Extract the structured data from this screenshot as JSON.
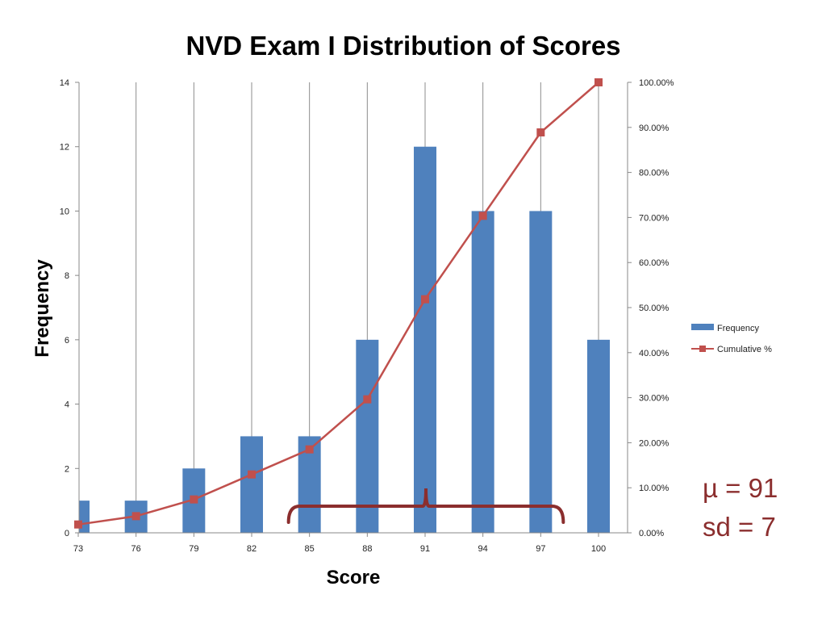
{
  "chart_data": {
    "type": "bar",
    "title": "NVD Exam I Distribution of Scores",
    "xlabel": "Score",
    "ylabel": "Frequency",
    "categories": [
      "73",
      "76",
      "79",
      "82",
      "85",
      "88",
      "91",
      "94",
      "97",
      "100"
    ],
    "series": [
      {
        "name": "Frequency",
        "type": "bar",
        "axis": "left",
        "color": "#4f81bd",
        "values": [
          1,
          1,
          2,
          3,
          3,
          6,
          12,
          10,
          10,
          6
        ]
      },
      {
        "name": "Cumulative %",
        "type": "line",
        "axis": "right",
        "color": "#c0504d",
        "marker": "square",
        "values": [
          1.85,
          3.7,
          7.41,
          12.96,
          18.52,
          29.63,
          51.85,
          70.37,
          88.89,
          100.0
        ]
      }
    ],
    "ylim": [
      0,
      14
    ],
    "y_ticks": [
      "0",
      "2",
      "4",
      "6",
      "8",
      "10",
      "12",
      "14"
    ],
    "y2lim": [
      0,
      100
    ],
    "y2_ticks": [
      "0.00%",
      "10.00%",
      "20.00%",
      "30.00%",
      "40.00%",
      "50.00%",
      "60.00%",
      "70.00%",
      "80.00%",
      "90.00%",
      "100.00%"
    ],
    "grid": "vertical",
    "legend": "right",
    "annotations": {
      "mean": "µ = 91",
      "sd": "sd = 7",
      "brace_range": [
        85,
        97
      ],
      "brace_color": "#8b2e2e"
    }
  }
}
